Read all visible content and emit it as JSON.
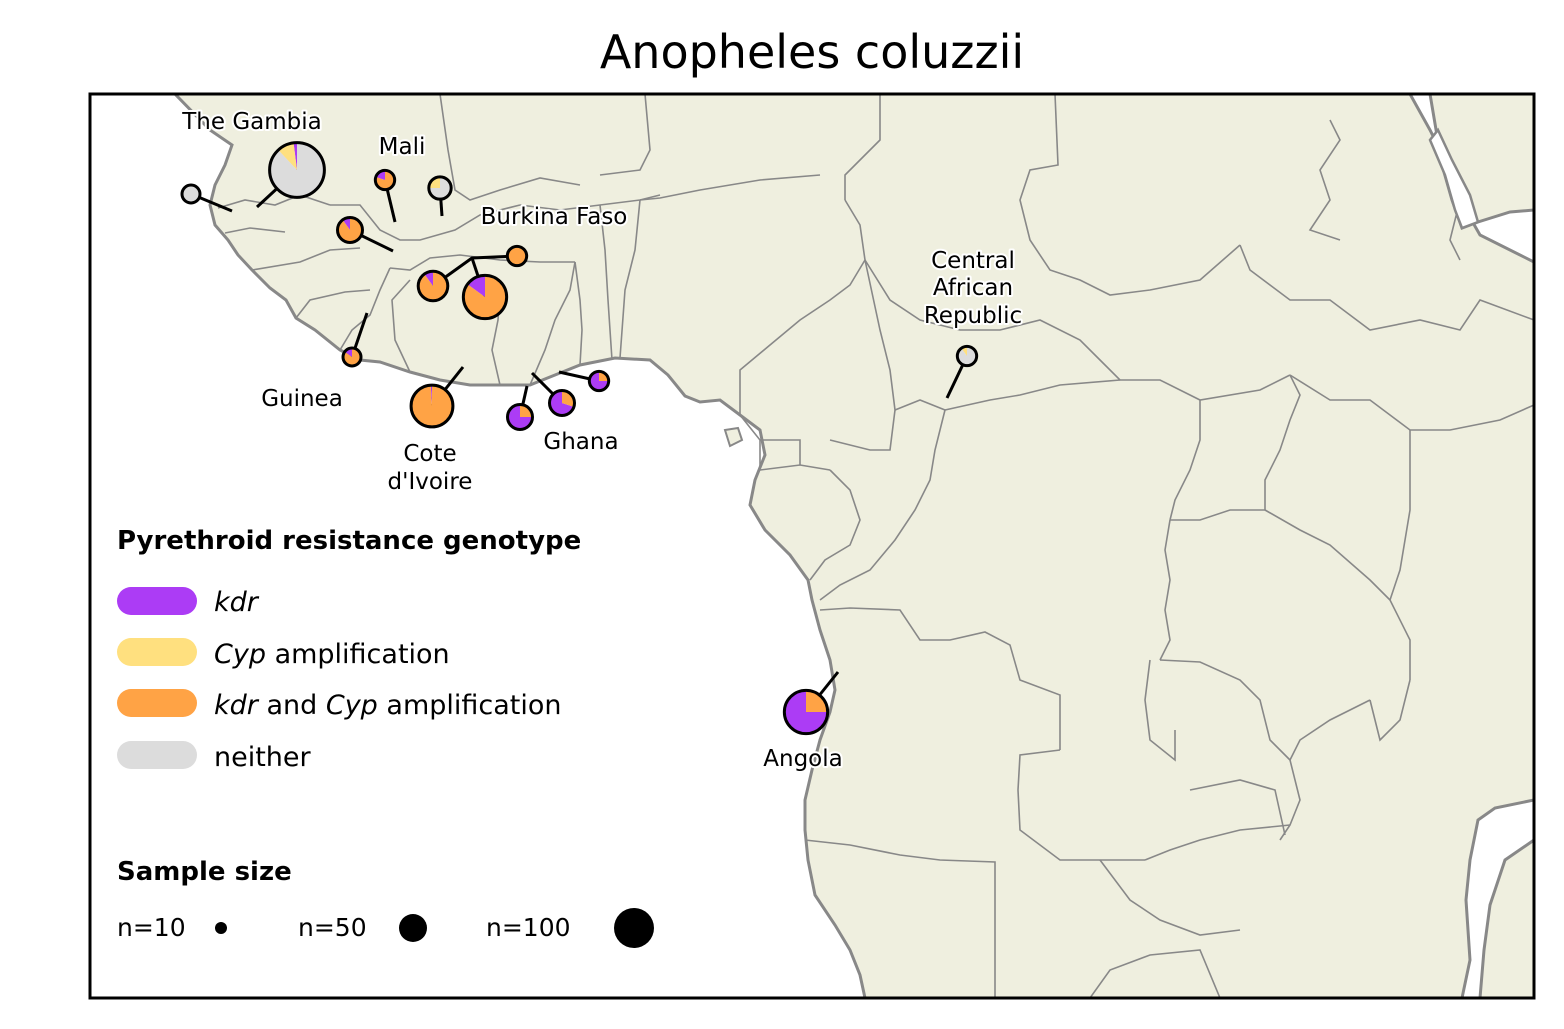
{
  "title": "Anopheles coluzzii",
  "colors": {
    "kdr": "#ac3cf5",
    "cyp": "#ffe07f",
    "both": "#ffa345",
    "neither": "#dcdcdc",
    "land": "#efefdf",
    "border": "#888888",
    "ocean": "#ffffff"
  },
  "labels": {
    "gambia": "The Gambia",
    "mali": "Mali",
    "burkina": "Burkina Faso",
    "car": [
      "Central",
      "African",
      "Republic"
    ],
    "guinea": "Guinea",
    "civ": [
      "Cote",
      "d'Ivoire"
    ],
    "ghana": "Ghana",
    "angola": "Angola"
  },
  "legend": {
    "title": "Pyrethroid resistance genotype",
    "kdr": {
      "em1": "kdr"
    },
    "cyp": {
      "em1": "Cyp",
      "rest": " amplification"
    },
    "both": {
      "em1": "kdr",
      "mid": " and ",
      "em2": "Cyp",
      "rest": " amplification"
    },
    "neither": {
      "text": "neither"
    }
  },
  "size_legend": {
    "title": "Sample size",
    "items": [
      {
        "label": "n=10",
        "n": 10
      },
      {
        "label": "n=50",
        "n": 50
      },
      {
        "label": "n=100",
        "n": 100
      }
    ]
  },
  "sites": [
    {
      "id": "gambia-west",
      "n": 10,
      "kdr": 0.0,
      "cyp": 0.0,
      "both": 0.0,
      "neither": 1.0
    },
    {
      "id": "gambia-main",
      "n": 120,
      "kdr": 0.02,
      "cyp": 0.1,
      "both": 0.0,
      "neither": 0.88
    },
    {
      "id": "mali-1",
      "n": 15,
      "kdr": 0.2,
      "cyp": 0.0,
      "both": 0.8,
      "neither": 0.0
    },
    {
      "id": "mali-2",
      "n": 20,
      "kdr": 0.0,
      "cyp": 0.25,
      "both": 0.0,
      "neither": 0.75
    },
    {
      "id": "mali-3",
      "n": 25,
      "kdr": 0.1,
      "cyp": 0.0,
      "both": 0.9,
      "neither": 0.0
    },
    {
      "id": "burkina-1",
      "n": 15,
      "kdr": 0.0,
      "cyp": 0.0,
      "both": 1.0,
      "neither": 0.0
    },
    {
      "id": "burkina-2",
      "n": 35,
      "kdr": 0.1,
      "cyp": 0.0,
      "both": 0.9,
      "neither": 0.0
    },
    {
      "id": "burkina-3",
      "n": 75,
      "kdr": 0.15,
      "cyp": 0.0,
      "both": 0.85,
      "neither": 0.0
    },
    {
      "id": "guinea",
      "n": 10,
      "kdr": 0.15,
      "cyp": 0.0,
      "both": 0.85,
      "neither": 0.0
    },
    {
      "id": "civ",
      "n": 70,
      "kdr": 0.01,
      "cyp": 0.0,
      "both": 0.99,
      "neither": 0.0
    },
    {
      "id": "ghana-1",
      "n": 25,
      "kdr": 0.75,
      "cyp": 0.0,
      "both": 0.25,
      "neither": 0.0
    },
    {
      "id": "ghana-2",
      "n": 25,
      "kdr": 0.7,
      "cyp": 0.0,
      "both": 0.3,
      "neither": 0.0
    },
    {
      "id": "ghana-3",
      "n": 15,
      "kdr": 0.75,
      "cyp": 0.0,
      "both": 0.25,
      "neither": 0.0
    },
    {
      "id": "car",
      "n": 15,
      "kdr": 0.0,
      "cyp": 0.1,
      "both": 0.0,
      "neither": 0.9
    },
    {
      "id": "angola",
      "n": 75,
      "kdr": 0.75,
      "cyp": 0.0,
      "both": 0.25,
      "neither": 0.0
    }
  ]
}
